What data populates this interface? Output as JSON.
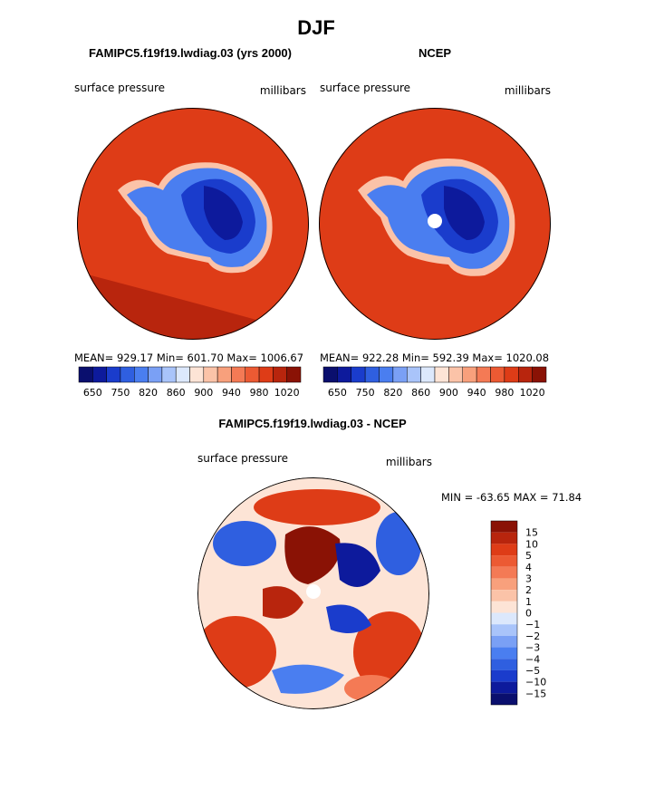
{
  "title": "DJF",
  "panels": [
    {
      "title": "FAMIPC5.f19f19.lwdiag.03 (yrs 2000)",
      "variable": "surface pressure",
      "units": "millibars",
      "stats": "MEAN= 929.17  Min= 601.70  Max= 1006.67"
    },
    {
      "title": "NCEP",
      "variable": "surface pressure",
      "units": "millibars",
      "stats": "MEAN= 922.28  Min= 592.39  Max= 1020.08"
    }
  ],
  "colorbar": {
    "labels": [
      "650",
      "750",
      "820",
      "860",
      "900",
      "940",
      "980",
      "1020"
    ],
    "colors": [
      "#0a0f6e",
      "#0d1a9c",
      "#1a3ccc",
      "#2f5fe0",
      "#4a7ef0",
      "#7aa0f5",
      "#a9c4fa",
      "#dce8fc",
      "#fde4d6",
      "#fbc3a8",
      "#f8a07c",
      "#f47a55",
      "#ec5a33",
      "#de3c17",
      "#b8250d",
      "#8a1205"
    ]
  },
  "difference": {
    "title": "FAMIPC5.f19f19.lwdiag.03 - NCEP",
    "variable": "surface pressure",
    "units": "millibars",
    "stats": "MIN = -63.65 MAX =  71.84",
    "colorbar": {
      "labels": [
        "15",
        "10",
        "5",
        "4",
        "3",
        "2",
        "1",
        "0",
        "−1",
        "−2",
        "−3",
        "−4",
        "−5",
        "−10",
        "−15"
      ],
      "colors": [
        "#8a1205",
        "#b8250d",
        "#de3c17",
        "#ec5a33",
        "#f47a55",
        "#f8a07c",
        "#fbc3a8",
        "#fde4d6",
        "#dce8fc",
        "#a9c4fa",
        "#7aa0f5",
        "#4a7ef0",
        "#2f5fe0",
        "#1a3ccc",
        "#0d1a9c",
        "#0a0f6e"
      ]
    }
  }
}
